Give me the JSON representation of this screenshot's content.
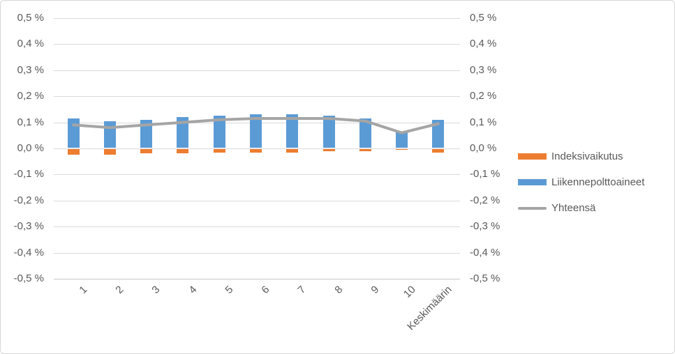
{
  "chart_data": {
    "type": "bar",
    "subtype": "stacked-column-with-total-line",
    "title": "",
    "xlabel": "",
    "ylabel": "",
    "categories": [
      "1",
      "2",
      "3",
      "4",
      "5",
      "6",
      "7",
      "8",
      "9",
      "10",
      "Keskimäärin"
    ],
    "series": [
      {
        "name": "Indeksivaikutus",
        "type": "bar",
        "color": "#ED7D31",
        "values": [
          -0.025,
          -0.025,
          -0.02,
          -0.02,
          -0.015,
          -0.015,
          -0.015,
          -0.01,
          -0.01,
          -0.005,
          -0.015
        ]
      },
      {
        "name": "Liikennepolttoaineet",
        "type": "bar",
        "color": "#5B9BD5",
        "values": [
          0.115,
          0.105,
          0.11,
          0.12,
          0.125,
          0.13,
          0.13,
          0.125,
          0.115,
          0.065,
          0.11
        ]
      },
      {
        "name": "Yhteensä",
        "type": "line",
        "color": "#A5A5A5",
        "values": [
          0.09,
          0.08,
          0.09,
          0.1,
          0.11,
          0.115,
          0.115,
          0.115,
          0.105,
          0.06,
          0.095
        ]
      }
    ],
    "y_axis": {
      "min": -0.5,
      "max": 0.5,
      "step": 0.1,
      "unit": "%",
      "tick_labels": [
        "0,5 %",
        "0,4 %",
        "0,3 %",
        "0,2 %",
        "0,1 %",
        "0,0 %",
        "-0,1 %",
        "-0,2 %",
        "-0,3 %",
        "-0,4 %",
        "-0,5 %"
      ],
      "tick_values": [
        0.5,
        0.4,
        0.3,
        0.2,
        0.1,
        0.0,
        -0.1,
        -0.2,
        -0.3,
        -0.4,
        -0.5
      ]
    },
    "right_axis_mirrors_left": true,
    "grid": true,
    "legend_position": "right",
    "legend": [
      "Indeksivaikutus",
      "Liikennepolttoaineet",
      "Yhteensä"
    ]
  },
  "colors": {
    "bar_negative": "#ED7D31",
    "bar_positive": "#5B9BD5",
    "total_line": "#A5A5A5",
    "gridline": "#D9D9D9",
    "axis_text": "#595959",
    "canvas_border": "#D6D6D6",
    "background": "#FFFFFF"
  }
}
